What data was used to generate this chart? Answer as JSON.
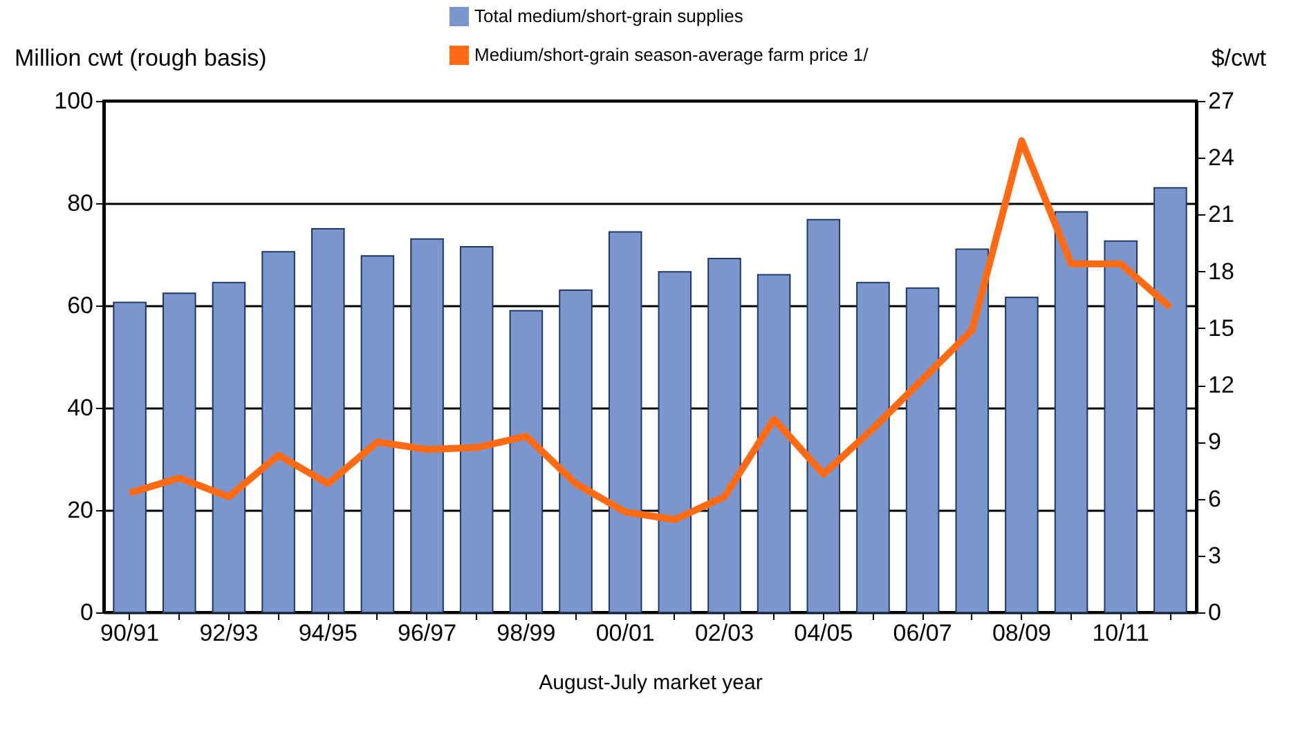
{
  "chart_data": {
    "type": "bar",
    "categories": [
      "90/91",
      null,
      "92/93",
      null,
      "94/95",
      null,
      "96/97",
      null,
      "98/99",
      null,
      "00/01",
      null,
      "02/03",
      null,
      "04/05",
      null,
      "06/07",
      null,
      "08/09",
      null,
      "10/11",
      null
    ],
    "series": [
      {
        "name": "Total medium/short-grain supplies",
        "color": "#7b96cc",
        "values": [
          60.6,
          62.4,
          64.5,
          70.5,
          75,
          69.7,
          73,
          71.5,
          59,
          63,
          74.4,
          66.6,
          69.2,
          66,
          76.8,
          64.5,
          63.4,
          71,
          61.6,
          78.3,
          72.6,
          83
        ]
      },
      {
        "name": "Medium/short-grain season-average  farm price 1/",
        "type": "line",
        "axis": "y2",
        "color": "#ff6a13",
        "values": [
          6.3,
          7.1,
          6.1,
          8.3,
          6.8,
          9.0,
          8.6,
          8.7,
          9.3,
          6.8,
          5.3,
          4.9,
          6.1,
          10.2,
          7.3,
          9.7,
          12.3,
          14.9,
          24.9,
          18.4,
          18.4,
          16.1
        ]
      }
    ],
    "xlabel": "August-July market year",
    "ylabel": "Million cwt (rough basis)",
    "y2label": "$/cwt",
    "ylim": [
      0,
      100
    ],
    "yticks": [
      0,
      20,
      40,
      60,
      80,
      100
    ],
    "y2lim": [
      0,
      27
    ],
    "y2ticks": [
      0,
      3,
      6,
      9,
      12,
      15,
      18,
      21,
      24,
      27
    ],
    "grid": "y",
    "legend": "top",
    "line_style": "solid",
    "marker": "none"
  }
}
